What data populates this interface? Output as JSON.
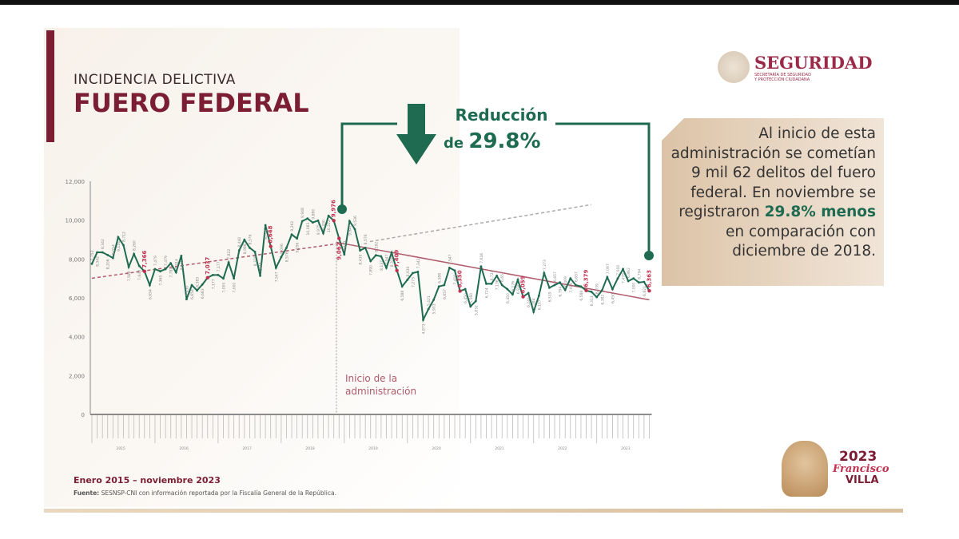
{
  "header": {
    "subtitle": "INCIDENCIA DELICTIVA",
    "title": "FUERO FEDERAL"
  },
  "logo": {
    "name": "SEGURIDAD",
    "sub1": "SECRETARÍA DE SEGURIDAD",
    "sub2": "Y PROTECCIÓN CIUDADANA"
  },
  "callout": {
    "line1": "Reducción",
    "prefix": "de ",
    "pct": "29.8%"
  },
  "textbox": {
    "text_before": "Al inicio de esta administración se cometían 9 mil 62 delitos del fuero federal. En noviembre se registraron ",
    "highlight": "29.8% menos",
    "text_after": " en comparación con diciembre de 2018."
  },
  "annotation": {
    "line1": "Inicio de la",
    "line2": "administración"
  },
  "footer": {
    "period": "Enero 2015 – noviembre 2023",
    "source_label": "Fuente:",
    "source": " SESNSP-CNI con información reportada por la Fiscalía General de la República."
  },
  "villa": {
    "year": "2023",
    "name1": "Francisco",
    "name2": "VILLA"
  },
  "colors": {
    "line": "#1e6b52",
    "highlight": "#c0304f",
    "trend": "#b05b6b",
    "projection": "#aaaaaa"
  },
  "chart_data": {
    "type": "line",
    "x_start": "2015-01",
    "x_end": "2023-11",
    "frequency": "monthly",
    "ylim": [
      0,
      12000
    ],
    "yticks": [
      "0",
      "2,000",
      "4,000",
      "6,000",
      "8,000",
      "10,000",
      "12,000"
    ],
    "year_labels": [
      "2015",
      "2016",
      "2017",
      "2018",
      "2019",
      "2020",
      "2021",
      "2022",
      "2023"
    ],
    "grid": false,
    "values": [
      7753,
      8342,
      8342,
      8206,
      8054,
      9124,
      8712,
      7588,
      8260,
      7643,
      7366,
      6654,
      7479,
      7369,
      7479,
      7781,
      7314,
      8165,
      5930,
      6654,
      6383,
      6683,
      7037,
      7177,
      7177,
      7000,
      7822,
      7000,
      8440,
      8988,
      8576,
      8370,
      7136,
      9741,
      8648,
      7547,
      8096,
      8576,
      9262,
      9056,
      9948,
      10083,
      9880,
      9975,
      9330,
      10222,
      9976,
      9062,
      8233,
      9947,
      9536,
      8439,
      8576,
      7890,
      8192,
      8137,
      7547,
      8329,
      7409,
      6588,
      6930,
      7273,
      7342,
      4873,
      5421,
      5901,
      6588,
      6657,
      7547,
      7410,
      6350,
      6450,
      5560,
      5832,
      7616,
      6724,
      6724,
      7136,
      6657,
      6450,
      6176,
      6930,
      6059,
      6244,
      5284,
      6107,
      7273,
      6519,
      6657,
      6794,
      6409,
      7000,
      6657,
      6588,
      6379,
      6313,
      6039,
      6382,
      7067,
      6450,
      7000,
      7478,
      6862,
      7000,
      6794,
      6821,
      6363
    ],
    "highlighted_indices": [
      10,
      22,
      34,
      46,
      47,
      58,
      70,
      82,
      94,
      106
    ],
    "trend_before": {
      "start": 7010,
      "end": 8780
    },
    "trend_after": {
      "start": 8860,
      "end": 5900
    },
    "projection": {
      "start": 8900,
      "end": 10800
    },
    "administration_start_index": 47
  }
}
